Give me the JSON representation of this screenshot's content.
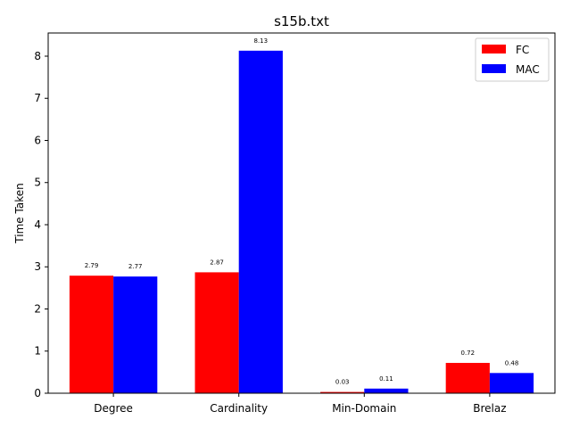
{
  "chart_data": {
    "type": "bar",
    "title": "s15b.txt",
    "xlabel": "",
    "ylabel": "Time Taken",
    "categories": [
      "Degree",
      "Cardinality",
      "Min-Domain",
      "Brelaz"
    ],
    "series": [
      {
        "name": "FC",
        "color": "#ff0000",
        "values": [
          2.79,
          2.87,
          0.03,
          0.72
        ],
        "labels": [
          "2.79",
          "2.87",
          "0.03",
          "0.72"
        ]
      },
      {
        "name": "MAC",
        "color": "#0000ff",
        "values": [
          2.77,
          8.13,
          0.11,
          0.48
        ],
        "labels": [
          "2.77",
          "8.13",
          "0.11",
          "0.48"
        ]
      }
    ],
    "ylim": [
      0,
      8.55
    ],
    "yticks": [
      "0",
      "1",
      "2",
      "3",
      "4",
      "5",
      "6",
      "7",
      "8"
    ],
    "grid": false,
    "legend_position": "top-right"
  }
}
